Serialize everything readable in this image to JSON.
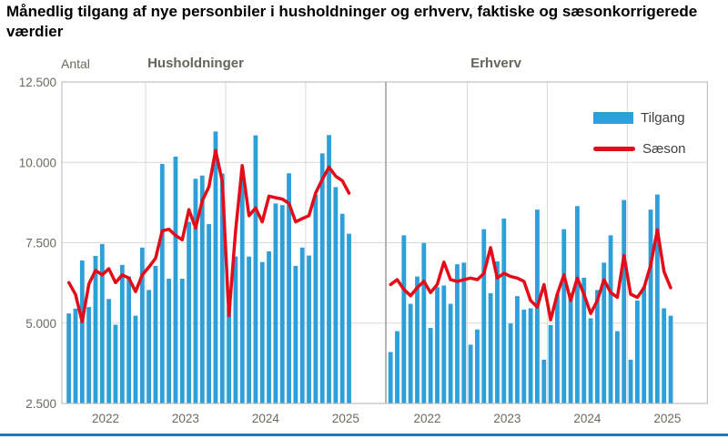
{
  "title": "Månedlig tilgang af nye personbiler i husholdninger og erhverv, faktiske og sæsonkorrigerede værdier",
  "y_axis": {
    "label": "Antal",
    "ticks": [
      "2.500",
      "5.000",
      "7.500",
      "10.000",
      "12.500"
    ],
    "tick_values": [
      2500,
      5000,
      7500,
      10000,
      12500
    ]
  },
  "legend": {
    "bars": "Tilgang",
    "line": "Sæson"
  },
  "colors": {
    "bar": "#2e9fd8",
    "line": "#e20d18",
    "axis_text": "#6b6a60",
    "grid": "#d9d9d9",
    "border": "#b3b3b3",
    "plot_bg": "#ffffff",
    "bottom_rule": "#2579ba",
    "title_text": "#000000"
  },
  "chart_data": [
    {
      "type": "bar",
      "title": "Husholdninger",
      "x_years": [
        "2022",
        "2023",
        "2024",
        "2025"
      ],
      "x_start": "2022-01",
      "x_end": "2025-07",
      "frequency": "monthly",
      "ylim": [
        2500,
        12500
      ],
      "grid": true,
      "series": [
        {
          "name": "Tilgang",
          "render": "bar",
          "values": [
            5300,
            5450,
            6950,
            5500,
            7090,
            7460,
            5750,
            4950,
            6810,
            6450,
            5230,
            7350,
            6030,
            6780,
            9950,
            6380,
            10180,
            6380,
            8150,
            9490,
            9590,
            8080,
            10960,
            9650,
            5510,
            7070,
            9800,
            7070,
            10840,
            6900,
            7230,
            8720,
            8670,
            9660,
            6780,
            7350,
            7100,
            9000,
            10280,
            10850,
            9230,
            8400,
            7780
          ]
        },
        {
          "name": "Sæson",
          "render": "line",
          "values": [
            6260,
            5890,
            5040,
            6220,
            6640,
            6500,
            6690,
            6260,
            6500,
            6400,
            5980,
            6500,
            6740,
            7020,
            7870,
            7920,
            7730,
            7590,
            8530,
            7960,
            8810,
            9240,
            10370,
            9400,
            5230,
            7870,
            9900,
            8340,
            8580,
            8150,
            8950,
            8900,
            8860,
            8720,
            8150,
            8250,
            8340,
            9050,
            9470,
            9850,
            9570,
            9430,
            9040
          ]
        }
      ]
    },
    {
      "type": "bar",
      "title": "Erhverv",
      "x_years": [
        "2022",
        "2023",
        "2024",
        "2025"
      ],
      "x_start": "2022-01",
      "x_end": "2025-07",
      "frequency": "monthly",
      "ylim": [
        2500,
        12500
      ],
      "grid": true,
      "series": [
        {
          "name": "Tilgang",
          "render": "bar",
          "values": [
            4100,
            4750,
            7730,
            5600,
            6450,
            7490,
            4850,
            6120,
            6170,
            5600,
            6830,
            6880,
            4330,
            4800,
            7920,
            5930,
            6920,
            8250,
            4990,
            5840,
            5420,
            5460,
            8530,
            3860,
            4940,
            5890,
            7920,
            5930,
            8640,
            6410,
            5150,
            6030,
            6880,
            7730,
            4750,
            8830,
            3860,
            5700,
            6120,
            8530,
            9000,
            5460,
            5230
          ]
        },
        {
          "name": "Sæson",
          "render": "line",
          "values": [
            6200,
            6350,
            6050,
            5850,
            6100,
            6300,
            5950,
            6200,
            6900,
            6350,
            6300,
            6350,
            6400,
            6350,
            6550,
            7350,
            6400,
            6550,
            6450,
            6400,
            6300,
            5700,
            5500,
            6200,
            5100,
            5900,
            6500,
            5700,
            6400,
            5900,
            5300,
            5700,
            6350,
            5950,
            5800,
            7100,
            5900,
            5800,
            6100,
            6800,
            7900,
            6600,
            6100
          ]
        }
      ]
    }
  ]
}
